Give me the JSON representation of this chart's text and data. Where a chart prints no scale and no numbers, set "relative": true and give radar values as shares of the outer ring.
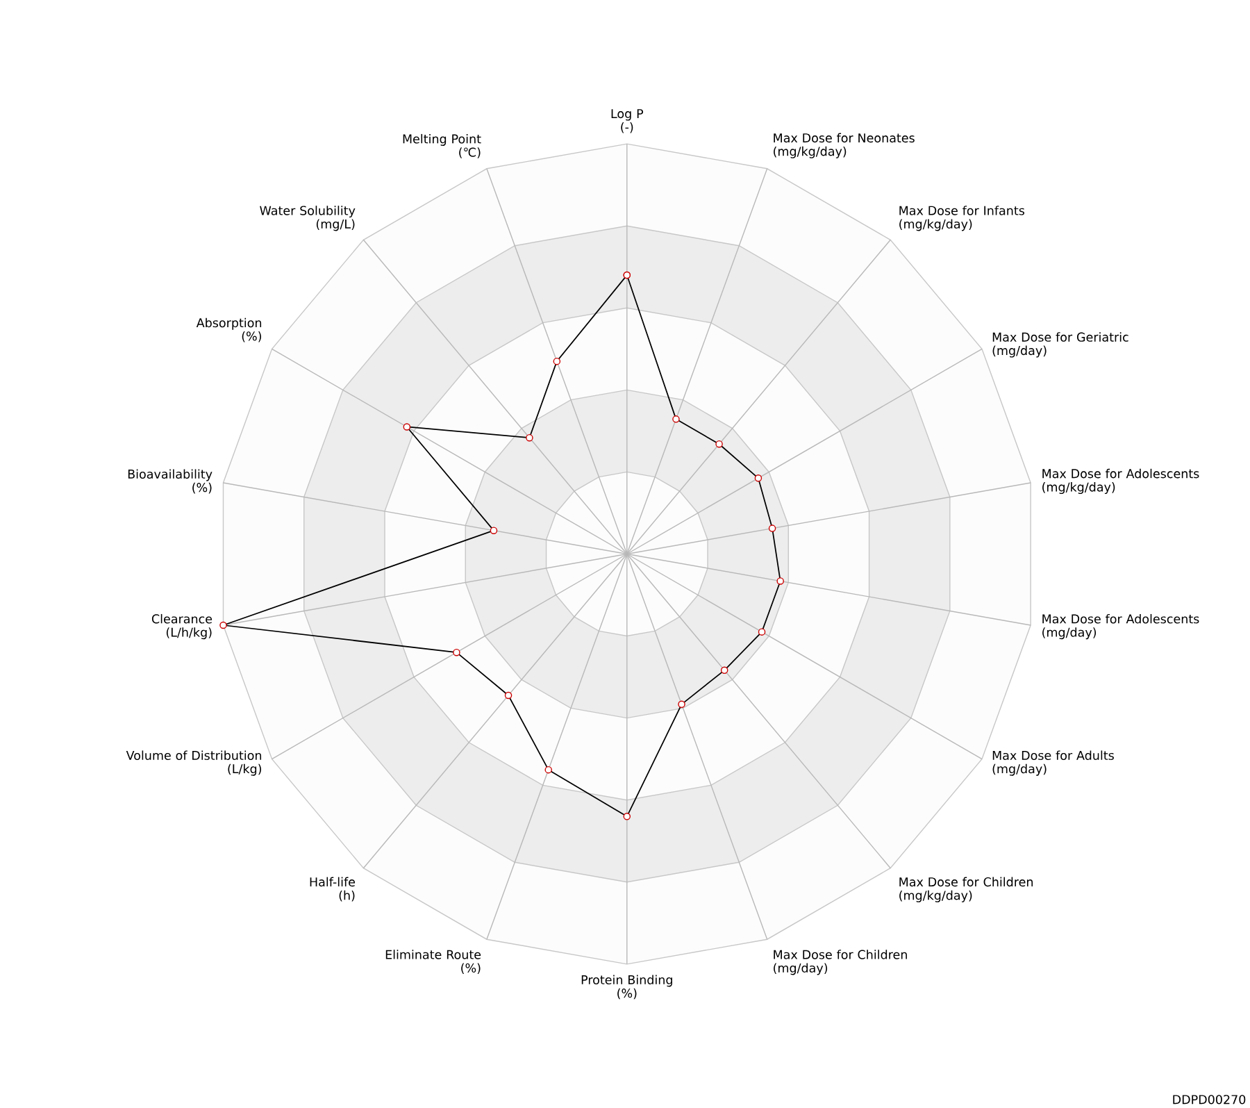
{
  "chart_data": {
    "type": "radar",
    "relative": true,
    "marker": "circle",
    "categories": [
      "Log P\n(-)",
      "Max Dose for Neonates\n(mg/kg/day)",
      "Max Dose for Infants\n(mg/kg/day)",
      "Max Dose for Geriatric\n(mg/day)",
      "Max Dose for Adolescents\n(mg/kg/day)",
      "Max Dose for Adolescents\n(mg/day)",
      "Max Dose for Adults\n(mg/day)",
      "Max Dose for Children\n(mg/kg/day)",
      "Max Dose for Children\n(mg/day)",
      "Protein Binding\n(%)",
      "Eliminate Route\n(%)",
      "Half-life\n(h)",
      "Volume of Distribution\n(L/kg)",
      "Clearance\n(L/h/kg)",
      "Bioavailability\n(%)",
      "Absorption\n(%)",
      "Water Solubility\n(mg/L)",
      "Melting Point\n(℃)"
    ],
    "series": [
      {
        "color": "#000000",
        "values": [
          0.68,
          0.35,
          0.35,
          0.37,
          0.36,
          0.38,
          0.38,
          0.37,
          0.39,
          0.64,
          0.56,
          0.45,
          0.48,
          1.0,
          0.33,
          0.62,
          0.37,
          0.5
        ]
      }
    ],
    "annotations": [
      "DDPD00270"
    ]
  }
}
